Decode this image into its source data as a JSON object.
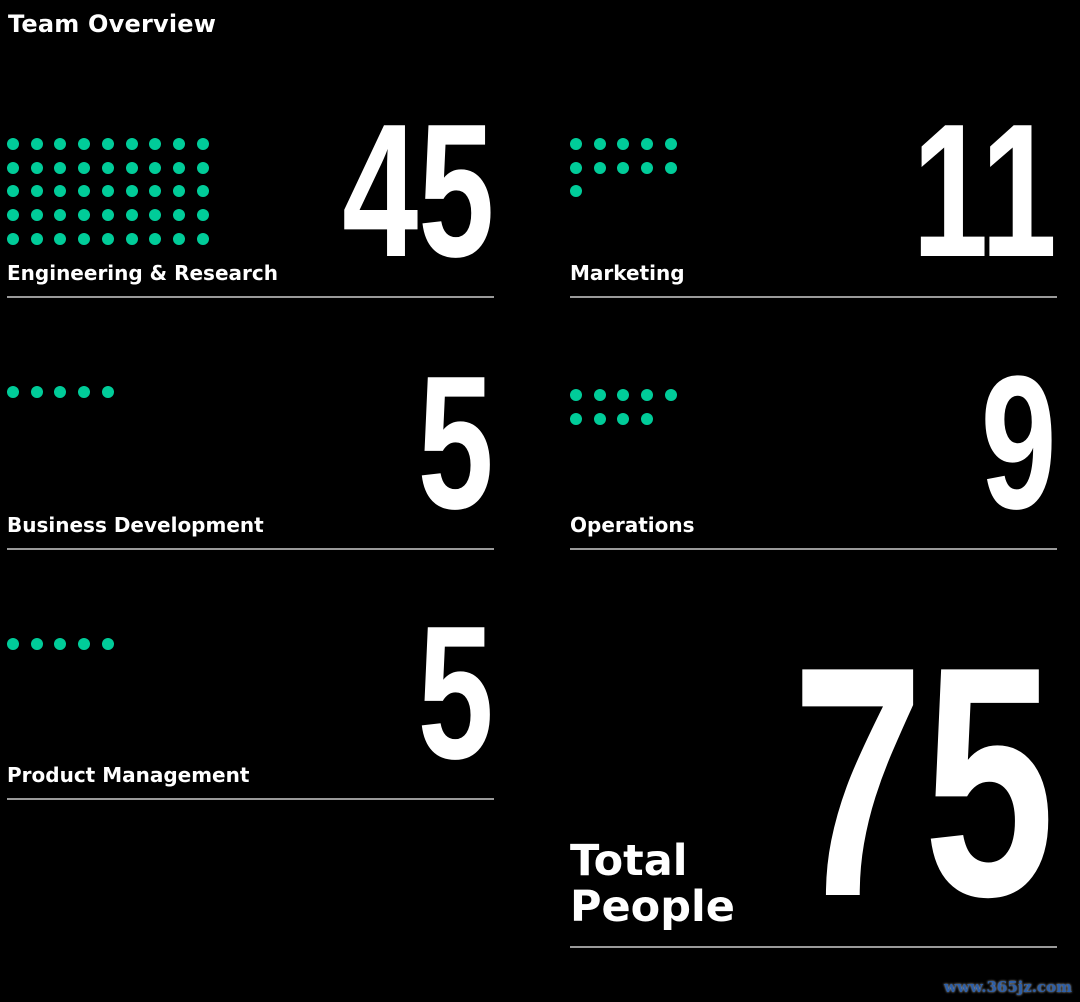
{
  "title": "Team Overview",
  "accent_color": "#00CC99",
  "teams": [
    {
      "name": "Engineering & Research",
      "count": "45"
    },
    {
      "name": "Marketing",
      "count": "11"
    },
    {
      "name": "Business Development",
      "count": "5"
    },
    {
      "name": "Operations",
      "count": "9"
    },
    {
      "name": "Product Management",
      "count": "5"
    }
  ],
  "total": {
    "line1": "Total",
    "line2": "People",
    "count": "75"
  },
  "watermark": "www.365jz.com"
}
